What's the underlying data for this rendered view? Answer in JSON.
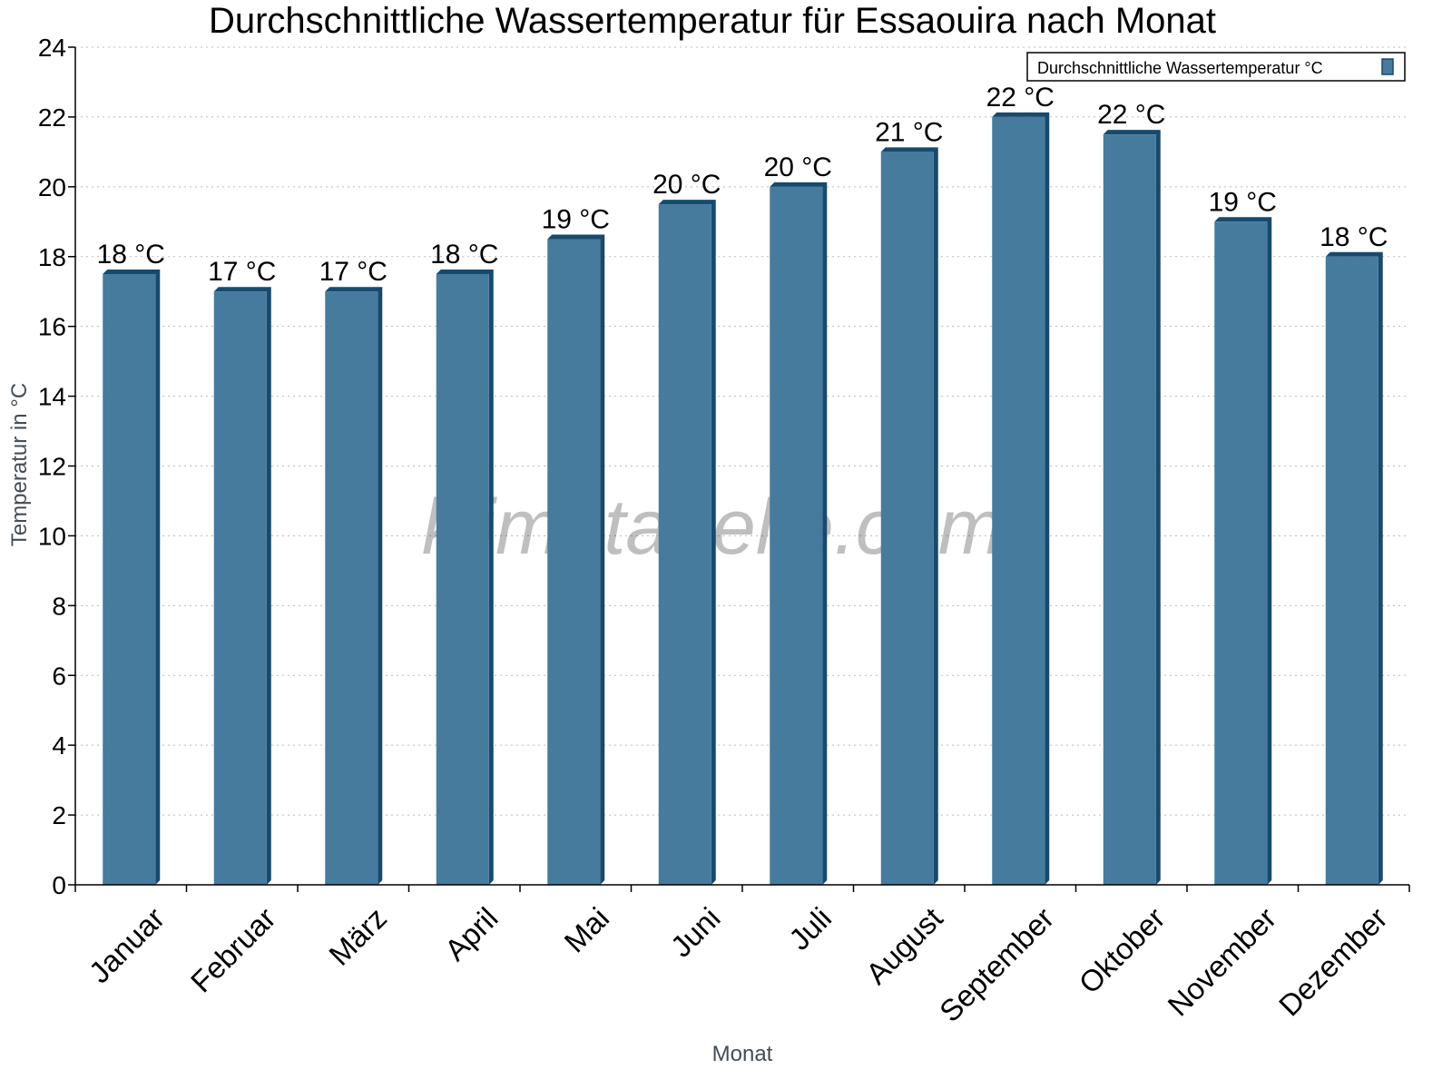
{
  "chart_data": {
    "type": "bar",
    "title": "Durchschnittliche Wassertemperatur für Essaouira nach Monat",
    "xlabel": "Monat",
    "ylabel": "Temperatur in °C",
    "categories": [
      "Januar",
      "Februar",
      "März",
      "April",
      "Mai",
      "Juni",
      "Juli",
      "August",
      "September",
      "Oktober",
      "November",
      "Dezember"
    ],
    "series": [
      {
        "name": "Durchschnittliche Wassertemperatur °C",
        "values": [
          17.5,
          17.0,
          17.0,
          17.5,
          18.5,
          19.5,
          20.0,
          21.0,
          22.0,
          21.5,
          19.0,
          18.0
        ],
        "data_labels": [
          "18 °C",
          "17 °C",
          "17 °C",
          "18 °C",
          "19 °C",
          "20 °C",
          "20 °C",
          "21 °C",
          "22 °C",
          "22 °C",
          "19 °C",
          "18 °C"
        ],
        "color": "#467b9e",
        "shade_color": "#174a6d"
      }
    ],
    "ylim": [
      0,
      24
    ],
    "yticks": [
      0,
      2,
      4,
      6,
      8,
      10,
      12,
      14,
      16,
      18,
      20,
      22,
      24
    ],
    "grid": "horizontal dotted",
    "legend": "top-right",
    "watermark": "klimatabelle.com"
  }
}
